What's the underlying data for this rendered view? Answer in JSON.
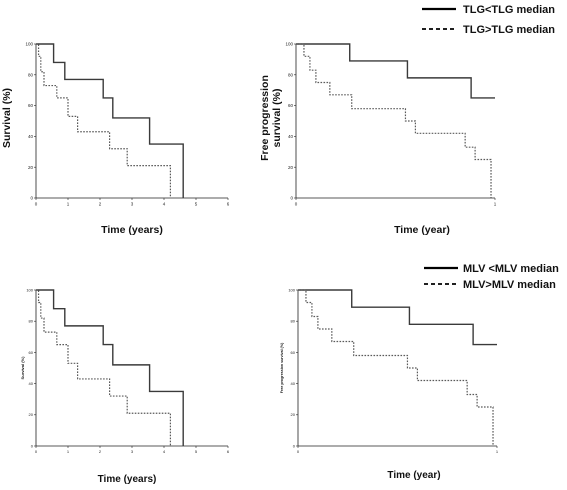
{
  "legends": [
    {
      "entries": [
        {
          "label": "TLG<TLG median",
          "style": "solid"
        },
        {
          "label": "TLG>TLG median",
          "style": "dashed"
        }
      ]
    },
    {
      "entries": [
        {
          "label": "MLV <MLV median",
          "style": "solid"
        },
        {
          "label": "MLV>MLV median",
          "style": "dashed"
        }
      ]
    }
  ],
  "chart_data": [
    {
      "type": "line",
      "xlabel": "Time (years)",
      "ylabel": "Survival (%)",
      "xlim": [
        0,
        6
      ],
      "ylim": [
        0,
        100
      ],
      "xticks": [
        "0",
        "1",
        "2",
        "3",
        "4",
        "5",
        "6"
      ],
      "yticks": [
        "0",
        "20",
        "40",
        "60",
        "80",
        "100"
      ],
      "series": [
        {
          "name": "TLG<TLG median",
          "style": "solid",
          "points": [
            [
              0,
              100
            ],
            [
              0.55,
              100
            ],
            [
              0.55,
              88
            ],
            [
              0.9,
              88
            ],
            [
              0.9,
              77
            ],
            [
              2.1,
              77
            ],
            [
              2.1,
              65
            ],
            [
              2.4,
              65
            ],
            [
              2.4,
              52
            ],
            [
              3.55,
              52
            ],
            [
              3.55,
              35
            ],
            [
              4.6,
              35
            ],
            [
              4.6,
              0
            ]
          ]
        },
        {
          "name": "TLG>TLG median",
          "style": "dashed",
          "points": [
            [
              0,
              100
            ],
            [
              0.08,
              100
            ],
            [
              0.08,
              92
            ],
            [
              0.15,
              92
            ],
            [
              0.15,
              82
            ],
            [
              0.25,
              82
            ],
            [
              0.25,
              73
            ],
            [
              0.65,
              73
            ],
            [
              0.65,
              65
            ],
            [
              1.0,
              65
            ],
            [
              1.0,
              53
            ],
            [
              1.3,
              53
            ],
            [
              1.3,
              43
            ],
            [
              2.3,
              43
            ],
            [
              2.3,
              32
            ],
            [
              2.85,
              32
            ],
            [
              2.85,
              21
            ],
            [
              4.2,
              21
            ],
            [
              4.2,
              0
            ]
          ]
        }
      ]
    },
    {
      "type": "line",
      "xlabel": "Time (year)",
      "ylabel": "Free progression survival (%)",
      "xlim": [
        0,
        1
      ],
      "ylim": [
        0,
        100
      ],
      "xticks": [
        "0",
        "1"
      ],
      "yticks": [
        "0",
        "20",
        "40",
        "60",
        "80",
        "100"
      ],
      "series": [
        {
          "name": "TLG<TLG median",
          "style": "solid",
          "points": [
            [
              0,
              100
            ],
            [
              0.27,
              100
            ],
            [
              0.27,
              89
            ],
            [
              0.56,
              89
            ],
            [
              0.56,
              78
            ],
            [
              0.88,
              78
            ],
            [
              0.88,
              65
            ],
            [
              1.0,
              65
            ]
          ]
        },
        {
          "name": "TLG>TLG median",
          "style": "dashed",
          "points": [
            [
              0,
              100
            ],
            [
              0.04,
              100
            ],
            [
              0.04,
              92
            ],
            [
              0.07,
              92
            ],
            [
              0.07,
              83
            ],
            [
              0.1,
              83
            ],
            [
              0.1,
              75
            ],
            [
              0.17,
              75
            ],
            [
              0.17,
              67
            ],
            [
              0.28,
              67
            ],
            [
              0.28,
              58
            ],
            [
              0.55,
              58
            ],
            [
              0.55,
              50
            ],
            [
              0.6,
              50
            ],
            [
              0.6,
              42
            ],
            [
              0.85,
              42
            ],
            [
              0.85,
              33
            ],
            [
              0.9,
              33
            ],
            [
              0.9,
              25
            ],
            [
              0.98,
              25
            ],
            [
              0.98,
              0
            ]
          ]
        }
      ]
    },
    {
      "type": "line",
      "xlabel": "Time (years)",
      "ylabel": "Survival (%)",
      "xlim": [
        0,
        6
      ],
      "ylim": [
        0,
        100
      ],
      "xticks": [
        "0",
        "1",
        "2",
        "3",
        "4",
        "5",
        "6"
      ],
      "yticks": [
        "0",
        "20",
        "40",
        "60",
        "80",
        "100"
      ],
      "series": [
        {
          "name": "MLV <MLV median",
          "style": "solid",
          "points": [
            [
              0,
              100
            ],
            [
              0.55,
              100
            ],
            [
              0.55,
              88
            ],
            [
              0.9,
              88
            ],
            [
              0.9,
              77
            ],
            [
              2.1,
              77
            ],
            [
              2.1,
              65
            ],
            [
              2.4,
              65
            ],
            [
              2.4,
              52
            ],
            [
              3.55,
              52
            ],
            [
              3.55,
              35
            ],
            [
              4.6,
              35
            ],
            [
              4.6,
              0
            ]
          ]
        },
        {
          "name": "MLV>MLV median",
          "style": "dashed",
          "points": [
            [
              0,
              100
            ],
            [
              0.08,
              100
            ],
            [
              0.08,
              92
            ],
            [
              0.15,
              92
            ],
            [
              0.15,
              82
            ],
            [
              0.25,
              82
            ],
            [
              0.25,
              73
            ],
            [
              0.65,
              73
            ],
            [
              0.65,
              65
            ],
            [
              1.0,
              65
            ],
            [
              1.0,
              53
            ],
            [
              1.3,
              53
            ],
            [
              1.3,
              43
            ],
            [
              2.3,
              43
            ],
            [
              2.3,
              32
            ],
            [
              2.85,
              32
            ],
            [
              2.85,
              21
            ],
            [
              4.2,
              21
            ],
            [
              4.2,
              0
            ]
          ]
        }
      ]
    },
    {
      "type": "line",
      "xlabel": "Time (year)",
      "ylabel": "Free progression survival (%)",
      "xlim": [
        0,
        1
      ],
      "ylim": [
        0,
        100
      ],
      "xticks": [
        "0",
        "1"
      ],
      "yticks": [
        "0",
        "20",
        "40",
        "60",
        "80",
        "100"
      ],
      "series": [
        {
          "name": "MLV <MLV median",
          "style": "solid",
          "points": [
            [
              0,
              100
            ],
            [
              0.27,
              100
            ],
            [
              0.27,
              89
            ],
            [
              0.56,
              89
            ],
            [
              0.56,
              78
            ],
            [
              0.88,
              78
            ],
            [
              0.88,
              65
            ],
            [
              1.0,
              65
            ]
          ]
        },
        {
          "name": "MLV>MLV median",
          "style": "dashed",
          "points": [
            [
              0,
              100
            ],
            [
              0.04,
              100
            ],
            [
              0.04,
              92
            ],
            [
              0.07,
              92
            ],
            [
              0.07,
              83
            ],
            [
              0.1,
              83
            ],
            [
              0.1,
              75
            ],
            [
              0.17,
              75
            ],
            [
              0.17,
              67
            ],
            [
              0.28,
              67
            ],
            [
              0.28,
              58
            ],
            [
              0.55,
              58
            ],
            [
              0.55,
              50
            ],
            [
              0.6,
              50
            ],
            [
              0.6,
              42
            ],
            [
              0.85,
              42
            ],
            [
              0.85,
              33
            ],
            [
              0.9,
              33
            ],
            [
              0.9,
              25
            ],
            [
              0.98,
              25
            ],
            [
              0.98,
              0
            ]
          ]
        }
      ]
    }
  ]
}
